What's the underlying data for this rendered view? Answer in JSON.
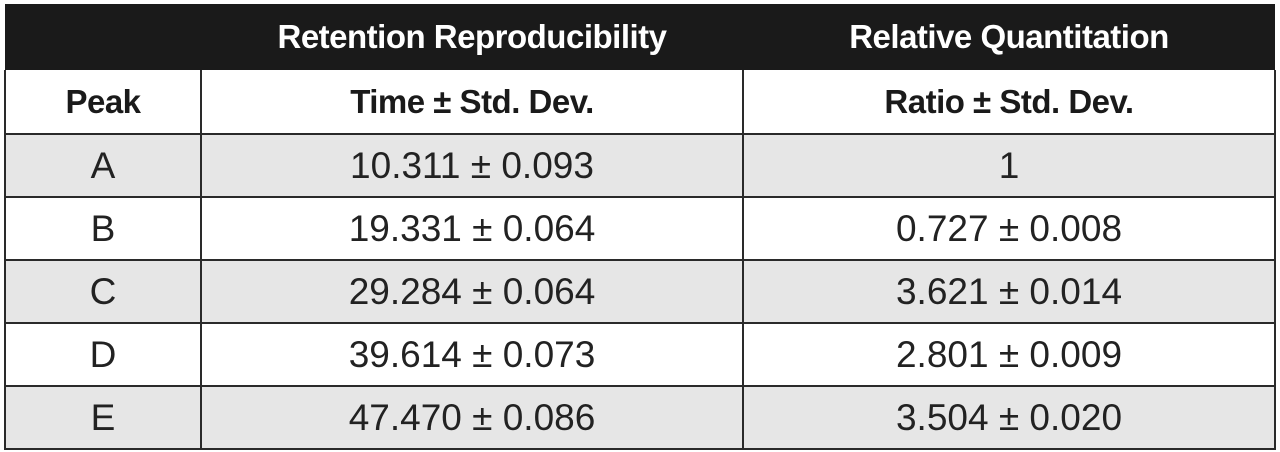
{
  "table": {
    "group_headers": [
      "",
      "Retention Reproducibility",
      "Relative Quantitation"
    ],
    "column_headers": [
      "Peak",
      "Time ± Std. Dev.",
      "Ratio ± Std. Dev."
    ],
    "rows": [
      {
        "peak": "A",
        "time": "10.311 ± 0.093",
        "ratio": "1"
      },
      {
        "peak": "B",
        "time": "19.331 ± 0.064",
        "ratio": "0.727 ± 0.008"
      },
      {
        "peak": "C",
        "time": "29.284 ± 0.064",
        "ratio": "3.621 ± 0.014"
      },
      {
        "peak": "D",
        "time": "39.614 ± 0.073",
        "ratio": "2.801 ± 0.009"
      },
      {
        "peak": "E",
        "time": "47.470 ± 0.086",
        "ratio": "3.504 ± 0.020"
      }
    ]
  },
  "colors": {
    "header_background": "#1a1a1a",
    "shaded_row": "#e6e6e6",
    "border": "#2a2a2a"
  }
}
